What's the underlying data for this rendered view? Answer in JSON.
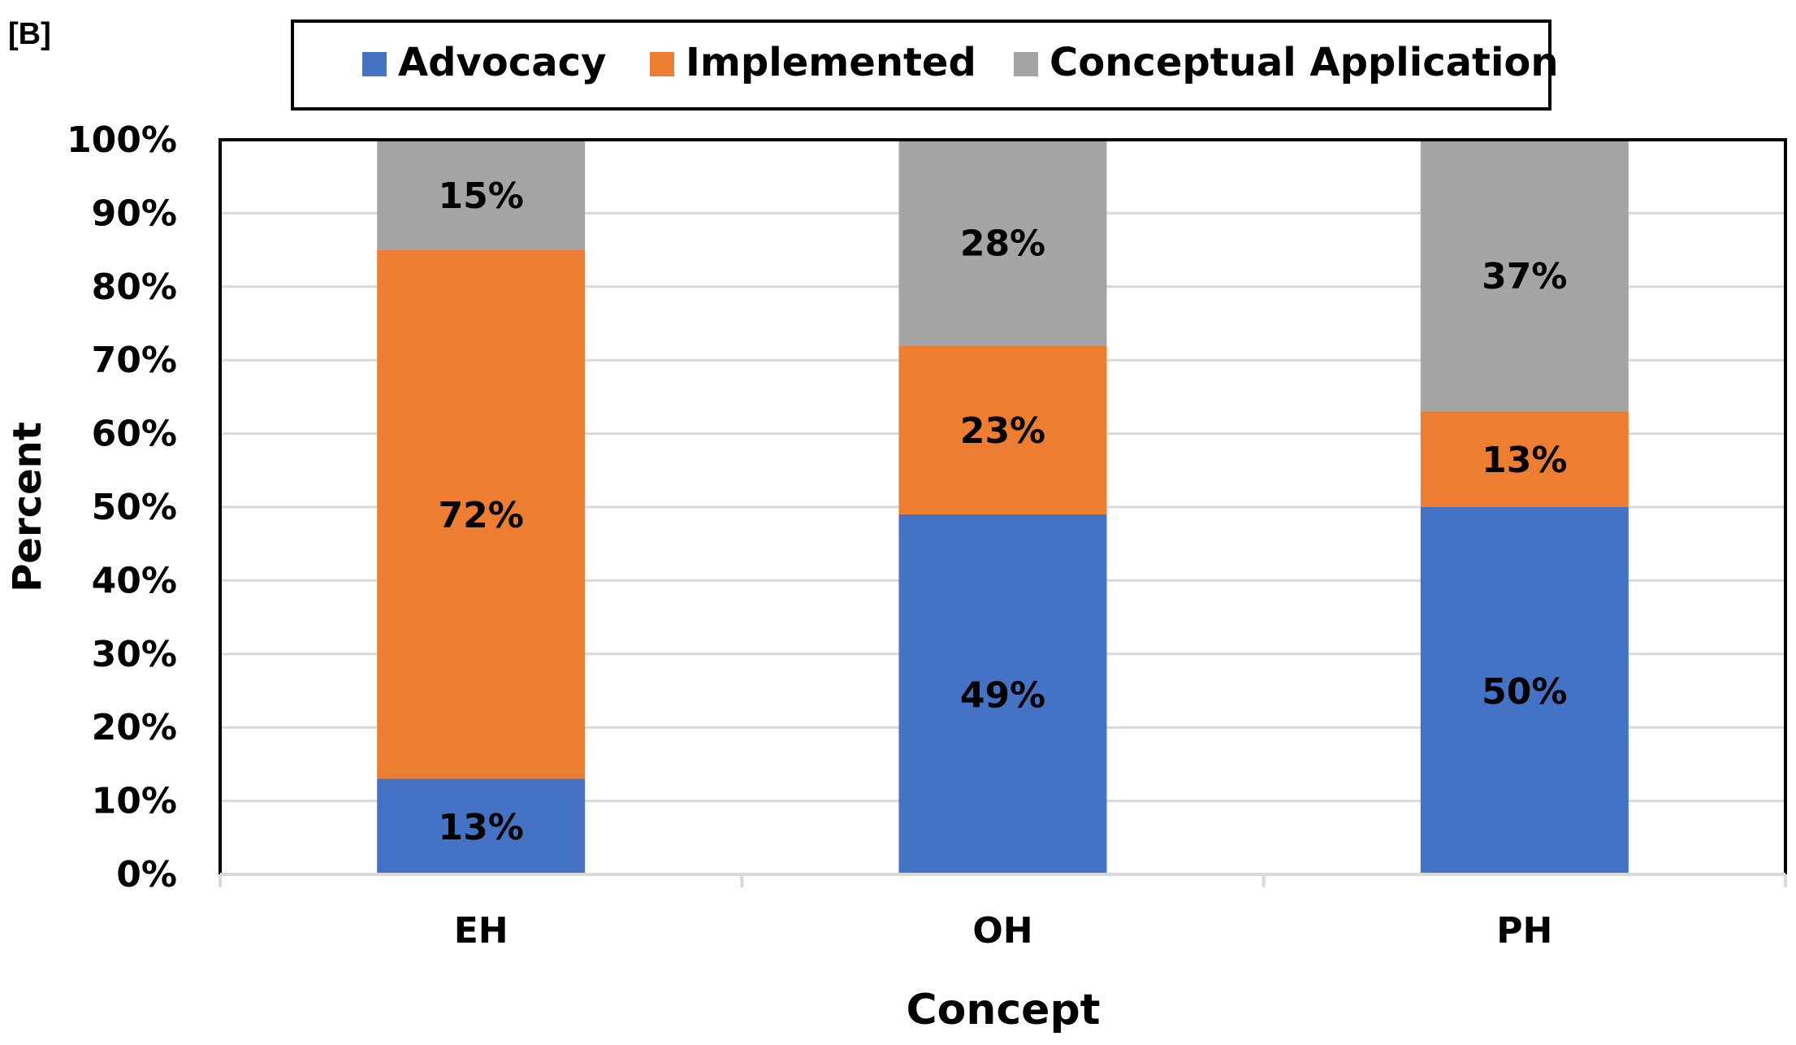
{
  "panel_label": "[B]",
  "chart_data": {
    "type": "bar",
    "stacked": true,
    "categories": [
      "EH",
      "OH",
      "PH"
    ],
    "series": [
      {
        "name": "Advocacy",
        "color": "#4472C4",
        "values": [
          13,
          49,
          50
        ],
        "labels": [
          "13%",
          "49%",
          "50%"
        ]
      },
      {
        "name": "Implemented",
        "color": "#ED7D31",
        "values": [
          72,
          23,
          13
        ],
        "labels": [
          "72%",
          "23%",
          "13%"
        ]
      },
      {
        "name": "Conceptual Application",
        "color": "#A5A5A5",
        "values": [
          15,
          28,
          37
        ],
        "labels": [
          "15%",
          "28%",
          "37%"
        ]
      }
    ],
    "xlabel": "Concept",
    "ylabel": "Percent",
    "ylim": [
      0,
      100
    ],
    "yticks": [
      "0%",
      "10%",
      "20%",
      "30%",
      "40%",
      "50%",
      "60%",
      "70%",
      "80%",
      "90%",
      "100%"
    ],
    "grid": true,
    "legend": "top"
  }
}
